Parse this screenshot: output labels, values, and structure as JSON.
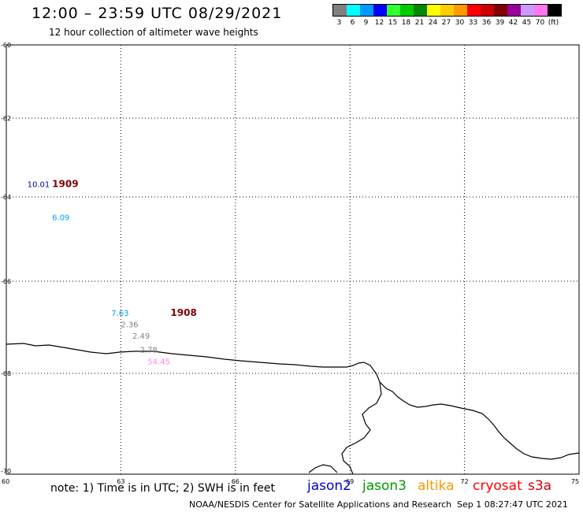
{
  "header": {
    "title": "12:00 – 23:59 UTC 08/29/2021",
    "subtitle": "12 hour collection of altimeter wave heights"
  },
  "legend": {
    "swatches": [
      {
        "color": "#808080",
        "label": "3"
      },
      {
        "color": "#00ffff",
        "label": "6"
      },
      {
        "color": "#0099ff",
        "label": "9"
      },
      {
        "color": "#0000ff",
        "label": "12"
      },
      {
        "color": "#33ff33",
        "label": "15"
      },
      {
        "color": "#00cc00",
        "label": "18"
      },
      {
        "color": "#008800",
        "label": "21"
      },
      {
        "color": "#ffff00",
        "label": "24"
      },
      {
        "color": "#ffcc00",
        "label": "27"
      },
      {
        "color": "#ff9900",
        "label": "30"
      },
      {
        "color": "#ff0000",
        "label": "33"
      },
      {
        "color": "#cc0000",
        "label": "36"
      },
      {
        "color": "#800000",
        "label": "39"
      },
      {
        "color": "#990099",
        "label": "42"
      },
      {
        "color": "#cc99ff",
        "label": "45"
      },
      {
        "color": "#ff77ee",
        "label": "70"
      },
      {
        "color": "#000000",
        "label": "(ft)"
      }
    ]
  },
  "map": {
    "lat_labels": [
      "-60",
      "-62",
      "-64",
      "-66",
      "-68",
      "-70"
    ],
    "lon_labels": [
      "60",
      "63",
      "66",
      "69",
      "72",
      "75"
    ],
    "observations": [
      {
        "text": "10.01",
        "color": "#000099",
        "lon": 60.55,
        "lat": -63.75
      },
      {
        "text": "6.09",
        "color": "#0099ff",
        "lon": 61.2,
        "lat": -64.55
      },
      {
        "text": "7.63",
        "color": "#0099ff",
        "lon": 62.75,
        "lat": -66.75
      },
      {
        "text": "2.36",
        "color": "#808080",
        "lon": 63.0,
        "lat": -67.0
      },
      {
        "text": "2.49",
        "color": "#808080",
        "lon": 63.3,
        "lat": -67.25
      },
      {
        "text": "2.78",
        "color": "#808080",
        "lon": 63.5,
        "lat": -67.55
      },
      {
        "text": "54.45",
        "color": "#ff88ee",
        "lon": 63.7,
        "lat": -67.8
      }
    ],
    "times": [
      {
        "text": "1909",
        "lon": 61.2,
        "lat": -63.75
      },
      {
        "text": "1908",
        "lon": 64.3,
        "lat": -66.75
      }
    ]
  },
  "footer": {
    "note": "note: 1) Time is in UTC; 2) SWH is in feet",
    "satellites": [
      {
        "name": "jason2",
        "color": "#0000cc"
      },
      {
        "name": "jason3",
        "color": "#009900"
      },
      {
        "name": "altika",
        "color": "#ff9900"
      },
      {
        "name": "cryosat",
        "color": "#ff0000"
      },
      {
        "name": "s3a",
        "color": "#cc0000"
      }
    ],
    "credit": "NOAA/NESDIS Center for Satellite Applications and Research",
    "issued": "Sep  1 08:27:47 UTC 2021"
  }
}
